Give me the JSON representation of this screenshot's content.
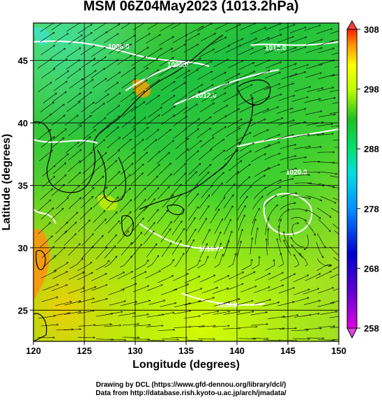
{
  "title": "MSM 06Z04May2023 (1013.2hPa)",
  "axes": {
    "xlabel": "Longitude (degrees)",
    "ylabel": "Latitude (degrees)",
    "xlim": [
      120,
      150
    ],
    "ylim": [
      22.5,
      48
    ],
    "xticks": [
      "120",
      "125",
      "130",
      "135",
      "140",
      "145",
      "150"
    ],
    "yticks": [
      "25",
      "30",
      "35",
      "40",
      "45"
    ]
  },
  "colorbar": {
    "min": 258,
    "max": 308,
    "ticks": [
      "258",
      "268",
      "278",
      "288",
      "298",
      "308"
    ],
    "colors": [
      "#c000c0",
      "#0000c8",
      "#0080ff",
      "#00d8ff",
      "#00e060",
      "#20c020",
      "#c0ff00",
      "#ffff00",
      "#ffa000",
      "#ff2000"
    ]
  },
  "contour_labels": [
    "1008.0",
    "1008.0",
    "1012.0",
    "1012.0",
    "1016.0",
    "1016.0",
    "1020.0"
  ],
  "footer": {
    "line1": "Drawing by DCL (https://www.gfd-dennou.org/library/dcl/)",
    "line2": "Data from http://database.rish.kyoto-u.ac.jp/arch/jmadata/"
  },
  "chart_data": {
    "type": "heatmap",
    "title": "MSM 06Z04May2023 (1013.2hPa)",
    "xlabel": "Longitude (degrees)",
    "ylabel": "Latitude (degrees)",
    "xlim": [
      120,
      150
    ],
    "ylim": [
      22.5,
      48
    ],
    "colorbar_range": [
      258,
      308
    ],
    "grid": true
  }
}
